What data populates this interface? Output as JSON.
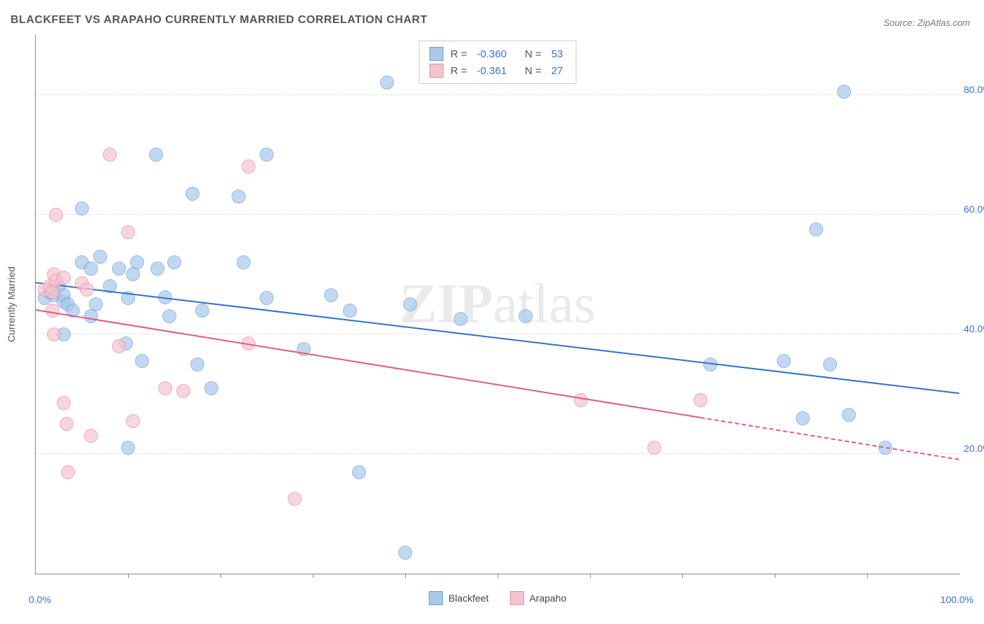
{
  "title": "BLACKFEET VS ARAPAHO CURRENTLY MARRIED CORRELATION CHART",
  "source": "Source: ZipAtlas.com",
  "ylabel": "Currently Married",
  "watermark_bold": "ZIP",
  "watermark_light": "atlas",
  "chart": {
    "type": "scatter",
    "xlim": [
      0,
      100
    ],
    "ylim": [
      0,
      90
    ],
    "x_min_label": "0.0%",
    "x_max_label": "100.0%",
    "x_label_color": "#3a6fd8",
    "xtick_positions": [
      10,
      20,
      30,
      40,
      50,
      60,
      70,
      80,
      90
    ],
    "y_gridlines": [
      {
        "value": 20,
        "label": "20.0%",
        "color": "#3a6fd8"
      },
      {
        "value": 40,
        "label": "40.0%",
        "color": "#3a6fd8"
      },
      {
        "value": 60,
        "label": "60.0%",
        "color": "#3a6fd8"
      },
      {
        "value": 80,
        "label": "80.0%",
        "color": "#3a6fd8"
      }
    ],
    "grid_color": "#dddddd",
    "background_color": "#ffffff",
    "axis_color": "#888888",
    "point_radius": 9,
    "point_opacity": 0.7,
    "series": [
      {
        "name": "Blackfeet",
        "fill_color": "#a9c8ec",
        "stroke_color": "#6f9fd8",
        "reg_line_color": "#2f6fd0",
        "reg_line_width": 2,
        "R": "-0.360",
        "N": "53",
        "regression": {
          "x1": 0,
          "y1": 48.5,
          "x2": 100,
          "y2": 30,
          "solid_until_x": 100
        },
        "points": [
          [
            1,
            46
          ],
          [
            1.5,
            47
          ],
          [
            2,
            46.5
          ],
          [
            2.5,
            48
          ],
          [
            3,
            45.5
          ],
          [
            3,
            46.5
          ],
          [
            3.5,
            45
          ],
          [
            4,
            44
          ],
          [
            3,
            40
          ],
          [
            5,
            61
          ],
          [
            5,
            52
          ],
          [
            6,
            51
          ],
          [
            6.5,
            45
          ],
          [
            6,
            43
          ],
          [
            7,
            53
          ],
          [
            8,
            48
          ],
          [
            9,
            51
          ],
          [
            9.8,
            38.5
          ],
          [
            10,
            46
          ],
          [
            10,
            21
          ],
          [
            10.5,
            50
          ],
          [
            11,
            52
          ],
          [
            11.5,
            35.5
          ],
          [
            13,
            70
          ],
          [
            13.2,
            51
          ],
          [
            14,
            46.2
          ],
          [
            14.5,
            43
          ],
          [
            15,
            52
          ],
          [
            17,
            63.5
          ],
          [
            17.5,
            35
          ],
          [
            18,
            44
          ],
          [
            19,
            31
          ],
          [
            22,
            63
          ],
          [
            22.5,
            52
          ],
          [
            25,
            70
          ],
          [
            25,
            46
          ],
          [
            29,
            37.5
          ],
          [
            32,
            46.5
          ],
          [
            34,
            44
          ],
          [
            35,
            17
          ],
          [
            38,
            82
          ],
          [
            40,
            3.5
          ],
          [
            40.5,
            45
          ],
          [
            46,
            42.5
          ],
          [
            53,
            43
          ],
          [
            73,
            35
          ],
          [
            81,
            35.5
          ],
          [
            83,
            26
          ],
          [
            84.5,
            57.5
          ],
          [
            86,
            35
          ],
          [
            88,
            26.5
          ],
          [
            92,
            21
          ],
          [
            87.5,
            80.5
          ]
        ]
      },
      {
        "name": "Arapaho",
        "fill_color": "#f5c4cf",
        "stroke_color": "#e88aa0",
        "reg_line_color": "#e05a80",
        "reg_line_width": 2,
        "R": "-0.361",
        "N": "27",
        "regression": {
          "x1": 0,
          "y1": 44,
          "x2": 100,
          "y2": 19,
          "solid_until_x": 72
        },
        "points": [
          [
            1,
            47.5
          ],
          [
            1.5,
            48
          ],
          [
            1.8,
            47
          ],
          [
            1.8,
            44
          ],
          [
            2,
            50
          ],
          [
            2,
            40
          ],
          [
            2.2,
            49
          ],
          [
            2.2,
            60
          ],
          [
            3,
            49.5
          ],
          [
            3.3,
            25
          ],
          [
            3,
            28.5
          ],
          [
            3.5,
            17
          ],
          [
            5,
            48.5
          ],
          [
            5.5,
            47.5
          ],
          [
            6,
            23
          ],
          [
            8,
            70
          ],
          [
            9,
            38
          ],
          [
            10,
            57
          ],
          [
            10.5,
            25.5
          ],
          [
            14,
            31
          ],
          [
            16,
            30.5
          ],
          [
            23,
            68
          ],
          [
            23,
            38.5
          ],
          [
            28,
            12.5
          ],
          [
            59,
            29
          ],
          [
            67,
            21
          ],
          [
            72,
            29
          ]
        ]
      }
    ],
    "stats_box": {
      "border_color": "#cccccc",
      "R_label": "R =",
      "N_label": "N ="
    },
    "legend": {
      "items": [
        {
          "label": "Blackfeet",
          "fill": "#a9c8ec",
          "stroke": "#6f9fd8"
        },
        {
          "label": "Arapaho",
          "fill": "#f5c4cf",
          "stroke": "#e88aa0"
        }
      ]
    }
  }
}
